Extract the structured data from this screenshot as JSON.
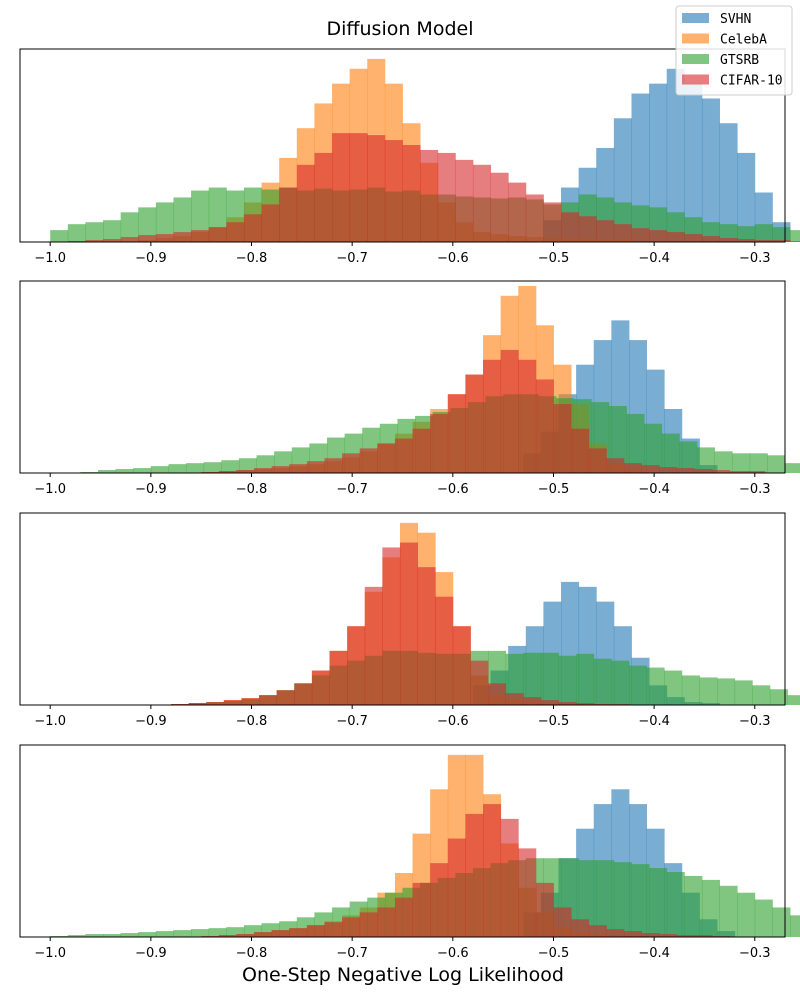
{
  "chart_data": {
    "type": "histogram",
    "title": "Diffusion Model",
    "xlabel": "One-Step Negative Log Likelihood",
    "xlim": [
      -1.03,
      -0.27
    ],
    "xticks": [
      -1.0,
      -0.9,
      -0.8,
      -0.7,
      -0.6,
      -0.5,
      -0.4,
      -0.3
    ],
    "xtick_labels": [
      "−1.0",
      "−0.9",
      "−0.8",
      "−0.7",
      "−0.6",
      "−0.5",
      "−0.4",
      "−0.3"
    ],
    "bin_width": 0.0175,
    "ylabel": "",
    "yticks_shown": false,
    "legend": {
      "placement": "top-right",
      "entries": [
        {
          "label": "SVHN",
          "color": "#1f77b4"
        },
        {
          "label": "CelebA",
          "color": "#ff7f0e"
        },
        {
          "label": "GTSRB",
          "color": "#2ca02c"
        },
        {
          "label": "CIFAR-10",
          "color": "#d62728"
        }
      ]
    },
    "series_colors": {
      "SVHN": "#1f77b4",
      "CelebA": "#ff7f0e",
      "GTSRB": "#2ca02c",
      "CIFAR-10": "#d62728"
    },
    "bar_alpha": 0.6,
    "panels": [
      {
        "ymax": 195,
        "draw_order": [
          "SVHN",
          "CelebA",
          "GTSRB",
          "CIFAR-10"
        ],
        "series": [
          {
            "name": "SVHN",
            "start": -0.51,
            "values": [
              22,
              55,
              75,
              95,
              125,
              150,
              160,
              175,
              160,
              145,
              120,
              90,
              50,
              20
            ]
          },
          {
            "name": "CelebA",
            "start": -1.0,
            "values": [
              0,
              0,
              0,
              0,
              0,
              2,
              4,
              6,
              10,
              15,
              25,
              40,
              60,
              85,
              115,
              140,
              160,
              175,
              185,
              160,
              120,
              80,
              40,
              20,
              10,
              8,
              6,
              5,
              4,
              3,
              3,
              2,
              2,
              1,
              1,
              1,
              1,
              1,
              0,
              0
            ]
          },
          {
            "name": "GTSRB",
            "start": -1.0,
            "values": [
              12,
              18,
              20,
              22,
              30,
              35,
              40,
              45,
              52,
              55,
              52,
              55,
              53,
              55,
              52,
              54,
              52,
              53,
              55,
              51,
              52,
              48,
              48,
              46,
              45,
              44,
              45,
              43,
              38,
              40,
              48,
              45,
              40,
              37,
              35,
              30,
              25,
              20,
              18,
              16,
              18,
              15,
              12,
              10,
              8,
              6,
              4,
              2
            ]
          },
          {
            "name": "CIFAR-10",
            "start": -1.0,
            "values": [
              0,
              1,
              2,
              3,
              5,
              7,
              8,
              10,
              12,
              15,
              20,
              28,
              38,
              55,
              78,
              90,
              110,
              110,
              108,
              103,
              98,
              93,
              90,
              83,
              78,
              70,
              60,
              48,
              40,
              30,
              26,
              22,
              18,
              14,
              12,
              10,
              8,
              6,
              4,
              3,
              2,
              2,
              1,
              1
            ]
          }
        ]
      },
      {
        "ymax": 195,
        "draw_order": [
          "SVHN",
          "CelebA",
          "GTSRB",
          "CIFAR-10"
        ],
        "series": [
          {
            "name": "SVHN",
            "start": -0.53,
            "values": [
              20,
              42,
              80,
              110,
              135,
              155,
              135,
              105,
              65,
              35,
              8
            ]
          },
          {
            "name": "CelebA",
            "start": -0.85,
            "values": [
              1,
              2,
              3,
              4,
              5,
              7,
              9,
              12,
              16,
              22,
              30,
              40,
              52,
              65,
              80,
              100,
              140,
              180,
              190,
              150,
              110,
              70,
              30,
              10,
              4
            ]
          },
          {
            "name": "GTSRB",
            "start": -0.97,
            "values": [
              1,
              3,
              4,
              5,
              7,
              9,
              10,
              11,
              13,
              15,
              18,
              22,
              26,
              30,
              36,
              40,
              46,
              50,
              55,
              58,
              62,
              66,
              72,
              78,
              80,
              80,
              78,
              76,
              75,
              72,
              68,
              60,
              50,
              40,
              32,
              26,
              22,
              20,
              20,
              18,
              10,
              3,
              2
            ]
          },
          {
            "name": "CIFAR-10",
            "start": -0.85,
            "values": [
              1,
              2,
              3,
              5,
              7,
              9,
              12,
              15,
              20,
              25,
              30,
              35,
              45,
              60,
              80,
              100,
              115,
              125,
              115,
              95,
              70,
              45,
              25,
              15,
              10,
              8,
              6,
              5,
              4,
              3,
              2,
              2
            ]
          }
        ]
      },
      {
        "ymax": 195,
        "draw_order": [
          "SVHN",
          "CelebA",
          "GTSRB",
          "CIFAR-10"
        ],
        "series": [
          {
            "name": "SVHN",
            "start": -0.58,
            "values": [
              20,
              35,
              60,
              80,
              105,
              125,
              120,
              105,
              80,
              48,
              20,
              8,
              3,
              2
            ]
          },
          {
            "name": "CelebA",
            "start": -0.88,
            "values": [
              1,
              2,
              3,
              5,
              7,
              10,
              15,
              22,
              35,
              55,
              80,
              115,
              150,
              185,
              175,
              135,
              80,
              30,
              10,
              5,
              3,
              2,
              1,
              1,
              1
            ]
          },
          {
            "name": "GTSRB",
            "start": -0.88,
            "values": [
              1,
              2,
              3,
              4,
              6,
              10,
              15,
              22,
              30,
              40,
              45,
              50,
              55,
              55,
              53,
              52,
              52,
              55,
              55,
              52,
              53,
              53,
              50,
              52,
              47,
              45,
              40,
              38,
              35,
              30,
              28,
              27,
              25,
              20,
              16,
              10,
              5,
              1
            ]
          },
          {
            "name": "CIFAR-10",
            "start": -0.88,
            "values": [
              1,
              2,
              3,
              5,
              7,
              10,
              15,
              22,
              35,
              55,
              80,
              120,
              160,
              165,
              140,
              110,
              80,
              45,
              22,
              12,
              8,
              5,
              3,
              2,
              1,
              1
            ]
          }
        ]
      },
      {
        "ymax": 195,
        "draw_order": [
          "SVHN",
          "CelebA",
          "GTSRB",
          "CIFAR-10"
        ],
        "series": [
          {
            "name": "SVHN",
            "start": -0.53,
            "values": [
              25,
              45,
              80,
              110,
              135,
              150,
              135,
              110,
              75,
              45,
              18,
              6
            ]
          },
          {
            "name": "CelebA",
            "start": -0.85,
            "values": [
              1,
              2,
              3,
              5,
              7,
              9,
              12,
              16,
              22,
              30,
              45,
              65,
              105,
              150,
              185,
              185,
              145,
              95,
              50,
              25,
              10,
              5,
              3,
              2,
              1
            ]
          },
          {
            "name": "GTSRB",
            "start": -1.0,
            "values": [
              1,
              2,
              3,
              3,
              4,
              5,
              6,
              7,
              8,
              9,
              10,
              12,
              14,
              16,
              20,
              25,
              30,
              36,
              40,
              45,
              50,
              55,
              60,
              65,
              70,
              75,
              78,
              80,
              80,
              80,
              78,
              78,
              76,
              74,
              70,
              66,
              62,
              58,
              52,
              45,
              38,
              30,
              22,
              16,
              10,
              6,
              3,
              2
            ]
          },
          {
            "name": "CIFAR-10",
            "start": -0.85,
            "values": [
              1,
              2,
              3,
              5,
              7,
              9,
              12,
              15,
              20,
              25,
              30,
              40,
              55,
              75,
              100,
              125,
              135,
              120,
              90,
              55,
              30,
              18,
              12,
              8,
              6,
              4,
              3,
              2,
              2,
              1
            ]
          }
        ]
      }
    ]
  }
}
